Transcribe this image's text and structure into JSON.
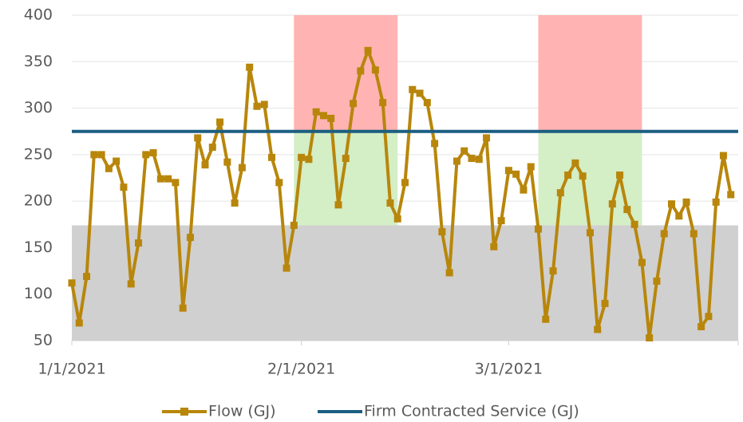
{
  "chart_data": {
    "type": "line",
    "x": [
      "1/1/2021",
      "1/2/2021",
      "1/3/2021",
      "1/4/2021",
      "1/5/2021",
      "1/6/2021",
      "1/7/2021",
      "1/8/2021",
      "1/9/2021",
      "1/10/2021",
      "1/11/2021",
      "1/12/2021",
      "1/13/2021",
      "1/14/2021",
      "1/15/2021",
      "1/16/2021",
      "1/17/2021",
      "1/18/2021",
      "1/19/2021",
      "1/20/2021",
      "1/21/2021",
      "1/22/2021",
      "1/23/2021",
      "1/24/2021",
      "1/25/2021",
      "1/26/2021",
      "1/27/2021",
      "1/28/2021",
      "1/29/2021",
      "1/30/2021",
      "1/31/2021",
      "2/1/2021",
      "2/2/2021",
      "2/3/2021",
      "2/4/2021",
      "2/5/2021",
      "2/6/2021",
      "2/7/2021",
      "2/8/2021",
      "2/9/2021",
      "2/10/2021",
      "2/11/2021",
      "2/12/2021",
      "2/13/2021",
      "2/14/2021",
      "2/15/2021",
      "2/16/2021",
      "2/17/2021",
      "2/18/2021",
      "2/19/2021",
      "2/20/2021",
      "2/21/2021",
      "2/22/2021",
      "2/23/2021",
      "2/24/2021",
      "2/25/2021",
      "2/26/2021",
      "2/27/2021",
      "2/28/2021",
      "3/1/2021",
      "3/2/2021",
      "3/3/2021",
      "3/4/2021",
      "3/5/2021",
      "3/6/2021",
      "3/7/2021",
      "3/8/2021",
      "3/9/2021",
      "3/10/2021",
      "3/11/2021",
      "3/12/2021",
      "3/13/2021",
      "3/14/2021",
      "3/15/2021",
      "3/16/2021",
      "3/17/2021",
      "3/18/2021",
      "3/19/2021",
      "3/20/2021",
      "3/21/2021",
      "3/22/2021",
      "3/23/2021",
      "3/24/2021",
      "3/25/2021",
      "3/26/2021",
      "3/27/2021",
      "3/28/2021",
      "3/29/2021",
      "3/30/2021",
      "3/31/2021"
    ],
    "series": [
      {
        "name": "Flow (GJ)",
        "color": "#b8860b",
        "values": [
          112,
          69,
          119,
          250,
          250,
          235,
          243,
          215,
          111,
          155,
          250,
          252,
          224,
          224,
          220,
          85,
          161,
          268,
          239,
          258,
          285,
          242,
          198,
          236,
          344,
          302,
          304,
          247,
          220,
          128,
          174,
          247,
          245,
          296,
          292,
          289,
          196,
          246,
          305,
          340,
          362,
          341,
          306,
          198,
          181,
          220,
          320,
          316,
          306,
          262,
          167,
          123,
          243,
          254,
          246,
          245,
          268,
          151,
          179,
          233,
          229,
          212,
          237,
          170,
          73,
          125,
          209,
          228,
          241,
          227,
          166,
          62,
          90,
          197,
          228,
          191,
          175,
          134,
          53,
          114,
          165,
          197,
          184,
          199,
          165,
          65,
          76,
          199,
          249,
          207
        ]
      },
      {
        "name": "Firm Contracted Service (GJ)",
        "color": "#1b5e82",
        "value": 275
      }
    ],
    "regions": [
      {
        "y0": 50,
        "y1": 174,
        "color": "#d0d0d0"
      },
      {
        "x0": "1/31/2021",
        "x1": "2/14/2021",
        "y0": 275,
        "y1": 400,
        "color": "#ffb3b3"
      },
      {
        "x0": "1/31/2021",
        "x1": "2/14/2021",
        "y0": 174,
        "y1": 275,
        "color": "#d4eec5"
      },
      {
        "x0": "3/5/2021",
        "x1": "3/19/2021",
        "y0": 275,
        "y1": 400,
        "color": "#ffb3b3"
      },
      {
        "x0": "3/5/2021",
        "x1": "3/19/2021",
        "y0": 174,
        "y1": 275,
        "color": "#d4eec5"
      }
    ],
    "xlim": [
      "1/1/2021",
      "4/1/2021"
    ],
    "xticks": [
      "1/1/2021",
      "2/1/2021",
      "3/1/2021"
    ],
    "ylim": [
      50,
      400
    ],
    "yticks": [
      50,
      100,
      150,
      200,
      250,
      300,
      350,
      400
    ],
    "grid": true,
    "legend": "bottom"
  }
}
